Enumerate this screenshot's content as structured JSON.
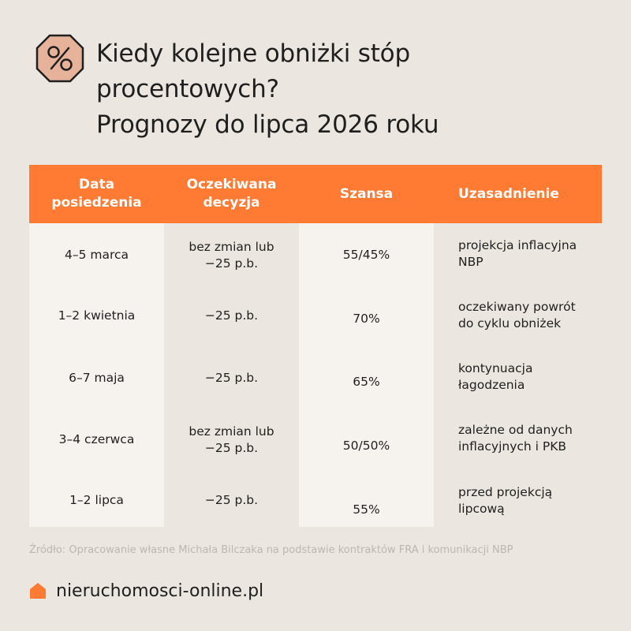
{
  "title_lines": [
    "Kiedy kolejne obniżki stóp",
    "procentowych?",
    "Prognozy do lipca 2026 roku"
  ],
  "icons": {
    "badge": "percent-octagon-icon",
    "brand": "house-icon"
  },
  "colors": {
    "accent": "#ff7a33",
    "background": "#ebe6df",
    "shaded": "#f6f3ef"
  },
  "table": {
    "headers": {
      "date": "Data posiedzenia",
      "decision": "Oczekiwana decyzja",
      "chance": "Szansa",
      "reason": "Uzasadnienie"
    },
    "rows": [
      {
        "date": "4–5 marca",
        "decision": "bez zmian lub −25 p.b.",
        "chance": "55/45%",
        "reason": "projekcja inflacyjna NBP"
      },
      {
        "date": "1–2 kwietnia",
        "decision": "−25 p.b.",
        "chance": "70%",
        "reason": "oczekiwany powrót do cyklu obniżek"
      },
      {
        "date": "6–7 maja",
        "decision": "−25 p.b.",
        "chance": "65%",
        "reason": "kontynuacja łagodzenia"
      },
      {
        "date": "3–4 czerwca",
        "decision": "bez zmian lub −25 p.b.",
        "chance": "50/50%",
        "reason": "zależne od danych inflacyjnych i PKB"
      },
      {
        "date": "1–2 lipca",
        "decision": "−25 p.b.",
        "chance": "55%",
        "reason": "przed projekcją lipcową"
      }
    ]
  },
  "source": "Źródło: Opracowanie własne Michała Bilczaka na podstawie kontraktów FRA i komunikacji NBP",
  "brand": "nieruchomosci-online.pl"
}
